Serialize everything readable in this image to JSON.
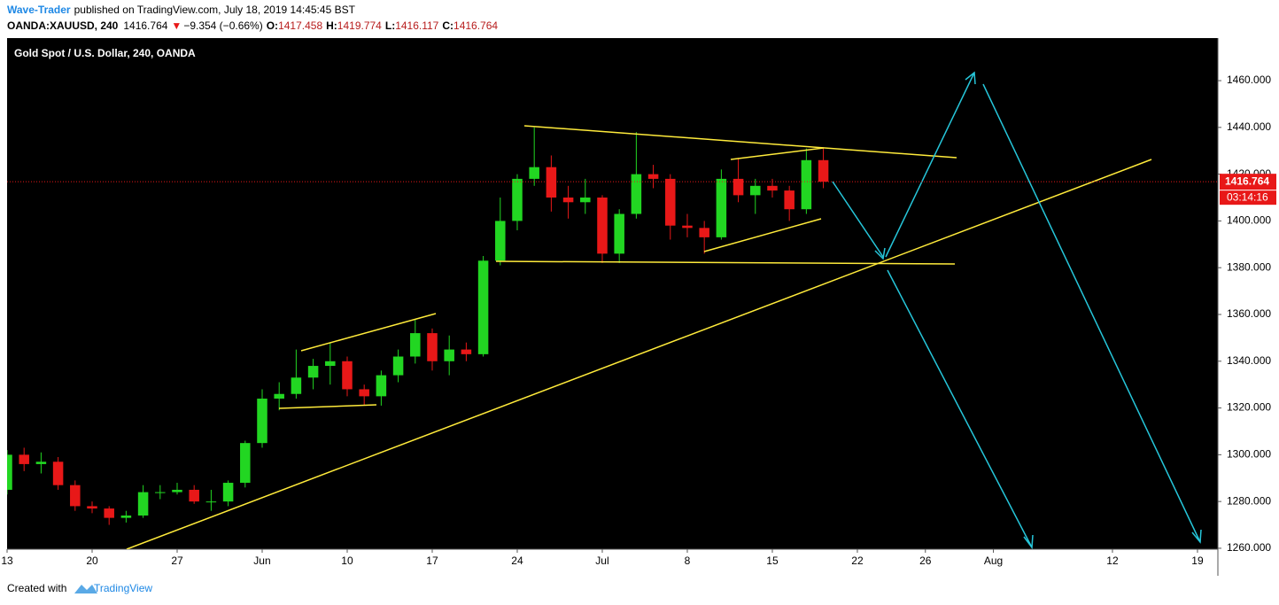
{
  "header": {
    "author": "Wave-Trader",
    "published": "published on TradingView.com, July 18, 2019 14:45:45 BST",
    "symbol": "OANDA:XAUUSD, 240",
    "last": "1416.764",
    "change": "−9.354 (−0.66%)",
    "o_label": "O:",
    "o": "1417.458",
    "h_label": "H:",
    "h": "1419.774",
    "l_label": "L:",
    "l": "1416.117",
    "c_label": "C:",
    "c": "1416.764"
  },
  "chart_data": {
    "type": "candlestick",
    "title": "Gold Spot / U.S. Dollar, 240, OANDA",
    "up_color": "#22d622",
    "down_color": "#e81818",
    "open": [
      1285,
      1300,
      1296,
      1297,
      1287,
      1278,
      1277,
      1273,
      1274,
      1284,
      1284,
      1285,
      1280,
      1280,
      1288,
      1305,
      1324,
      1326,
      1333,
      1338,
      1340,
      1328,
      1325,
      1334,
      1342,
      1352,
      1340,
      1345,
      1343,
      1383,
      1400,
      1418,
      1423,
      1410,
      1408,
      1410,
      1386,
      1403,
      1420,
      1418,
      1398,
      1397,
      1393,
      1418,
      1411,
      1415,
      1413,
      1405,
      1426
    ],
    "high": [
      1302,
      1303,
      1301,
      1299,
      1289,
      1280,
      1278,
      1276,
      1287,
      1287,
      1288,
      1287,
      1285,
      1289,
      1306,
      1328,
      1331,
      1345,
      1341,
      1348,
      1342,
      1330,
      1336,
      1345,
      1358,
      1354,
      1351,
      1348,
      1385,
      1410,
      1420,
      1440,
      1428,
      1415,
      1418,
      1411,
      1405,
      1438,
      1424,
      1420,
      1403,
      1400,
      1422,
      1427,
      1418,
      1418,
      1415,
      1431,
      1431
    ],
    "low": [
      1283,
      1293,
      1292,
      1285,
      1276,
      1275,
      1270,
      1271,
      1273,
      1281,
      1283,
      1279,
      1276,
      1278,
      1286,
      1303,
      1319,
      1324,
      1328,
      1330,
      1325,
      1321,
      1321,
      1331,
      1339,
      1336,
      1334,
      1340,
      1342,
      1381,
      1396,
      1415,
      1404,
      1401,
      1403,
      1382,
      1382,
      1401,
      1414,
      1392,
      1393,
      1386,
      1392,
      1408,
      1403,
      1410,
      1400,
      1403,
      1414
    ],
    "close": [
      1300,
      1296,
      1297,
      1287,
      1278,
      1277,
      1273,
      1274,
      1284,
      1284,
      1285,
      1280,
      1280,
      1288,
      1305,
      1324,
      1326,
      1333,
      1338,
      1340,
      1328,
      1325,
      1334,
      1342,
      1352,
      1340,
      1345,
      1343,
      1383,
      1400,
      1418,
      1423,
      1410,
      1408,
      1410,
      1386,
      1403,
      1420,
      1418,
      1398,
      1397,
      1393,
      1418,
      1411,
      1415,
      1413,
      1405,
      1426,
      1416.764
    ],
    "last_price": 1416.764,
    "countdown": "03:14:16",
    "xlim": [
      0,
      71.2
    ],
    "xticks": [
      {
        "value": 0,
        "label": "13"
      },
      {
        "value": 5,
        "label": "20"
      },
      {
        "value": 10,
        "label": "27"
      },
      {
        "value": 15,
        "label": "Jun"
      },
      {
        "value": 20,
        "label": "10"
      },
      {
        "value": 25,
        "label": "17"
      },
      {
        "value": 30,
        "label": "24"
      },
      {
        "value": 35,
        "label": "Jul"
      },
      {
        "value": 40,
        "label": "8"
      },
      {
        "value": 45,
        "label": "15"
      },
      {
        "value": 50,
        "label": "22"
      },
      {
        "value": 54,
        "label": "26"
      },
      {
        "value": 58,
        "label": "Aug"
      },
      {
        "value": 65,
        "label": "12"
      },
      {
        "value": 70,
        "label": "19"
      }
    ],
    "ylim": [
      1259.6,
      1478.2
    ],
    "yticks": [
      {
        "value": 1260,
        "label": "1260.000"
      },
      {
        "value": 1280,
        "label": "1280.000"
      },
      {
        "value": 1300,
        "label": "1300.000"
      },
      {
        "value": 1320,
        "label": "1320.000"
      },
      {
        "value": 1340,
        "label": "1340.000"
      },
      {
        "value": 1360,
        "label": "1360.000"
      },
      {
        "value": 1380,
        "label": "1380.000"
      },
      {
        "value": 1400,
        "label": "1400.000"
      },
      {
        "value": 1420,
        "label": "1420.000"
      },
      {
        "value": 1440,
        "label": "1440.000"
      },
      {
        "value": 1460,
        "label": "1460.000"
      }
    ]
  },
  "footer": {
    "created": "Created with",
    "brand": "TradingView"
  }
}
